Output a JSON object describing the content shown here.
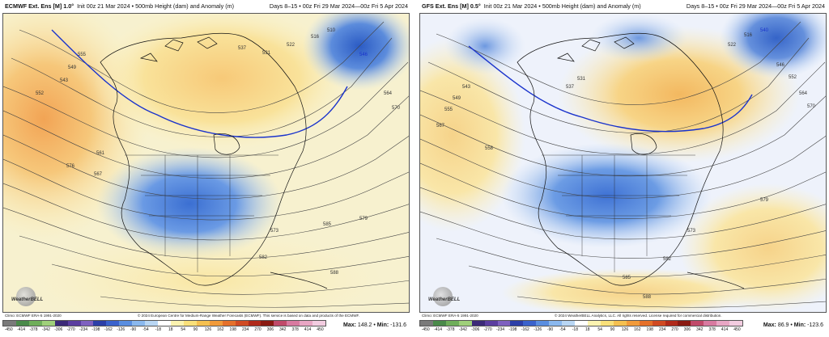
{
  "left": {
    "model": "ECMWF Ext. Ens [M] 1.0°",
    "description": "Init 00z 21 Mar 2024 • 500mb Height (dam) and Anomaly (m)",
    "days": "Days 8–15 • 00z Fri 29 Mar 2024—00z Fri 5 Apr 2024",
    "climo": "Climo: ECMWF ERA-5 1991-2020",
    "credit": "© 2024 European Centre for Medium-Range Weather Forecasts (ECMWF). This service is based on data and products of the ECMWF.",
    "max_label": "Max:",
    "max_value": "148.2",
    "min_label": "Min:",
    "min_value": "-131.6",
    "contour_labels": [
      "555",
      "549",
      "543",
      "537",
      "531",
      "522",
      "516",
      "510",
      "546",
      "552",
      "564",
      "570",
      "561",
      "567",
      "573",
      "576",
      "579",
      "582",
      "585",
      "588"
    ]
  },
  "right": {
    "model": "GFS Ext. Ens [M] 0.5°",
    "description": "Init 00z 21 Mar 2024 • 500mb Height (dam) and Anomaly (m)",
    "days": "Days 8–15 • 00z Fri 29 Mar 2024—00z Fri 5 Apr 2024",
    "climo": "Climo: ECMWF ERA-5 1991-2020",
    "credit": "© 2024 WeatherBELL Analytics, LLC. All rights reserved. License required for commercial distribution.",
    "max_label": "Max:",
    "max_value": "86.9",
    "min_label": "Min:",
    "min_value": "-123.6",
    "contour_labels": [
      "555",
      "549",
      "543",
      "537",
      "531",
      "522",
      "516",
      "540",
      "546",
      "552",
      "558",
      "564",
      "570",
      "567",
      "573",
      "579",
      "582",
      "585",
      "588"
    ]
  },
  "logo_text": "WeatherBELL",
  "colorbar": {
    "labels": [
      "-450",
      "-414",
      "-378",
      "-342",
      "-306",
      "-270",
      "-234",
      "-198",
      "-162",
      "-126",
      "-90",
      "-54",
      "-18",
      "18",
      "54",
      "90",
      "126",
      "162",
      "198",
      "234",
      "270",
      "306",
      "342",
      "378",
      "414",
      "450"
    ],
    "colors": [
      "#7a7a7a",
      "#4a8a4a",
      "#6fae5a",
      "#9fd07a",
      "#3c2a78",
      "#5b3ea0",
      "#7e61c0",
      "#2c3fa8",
      "#3a62cc",
      "#5a8ee0",
      "#8ab8ee",
      "#b8d6f4",
      "#ffffff",
      "#fbf3b0",
      "#f9e07a",
      "#f5c050",
      "#f19a3a",
      "#e5702a",
      "#d04a22",
      "#b02a1a",
      "#8a1a12",
      "#c04a6a",
      "#d87aa0",
      "#e8a6c4",
      "#f2cce0"
    ]
  }
}
